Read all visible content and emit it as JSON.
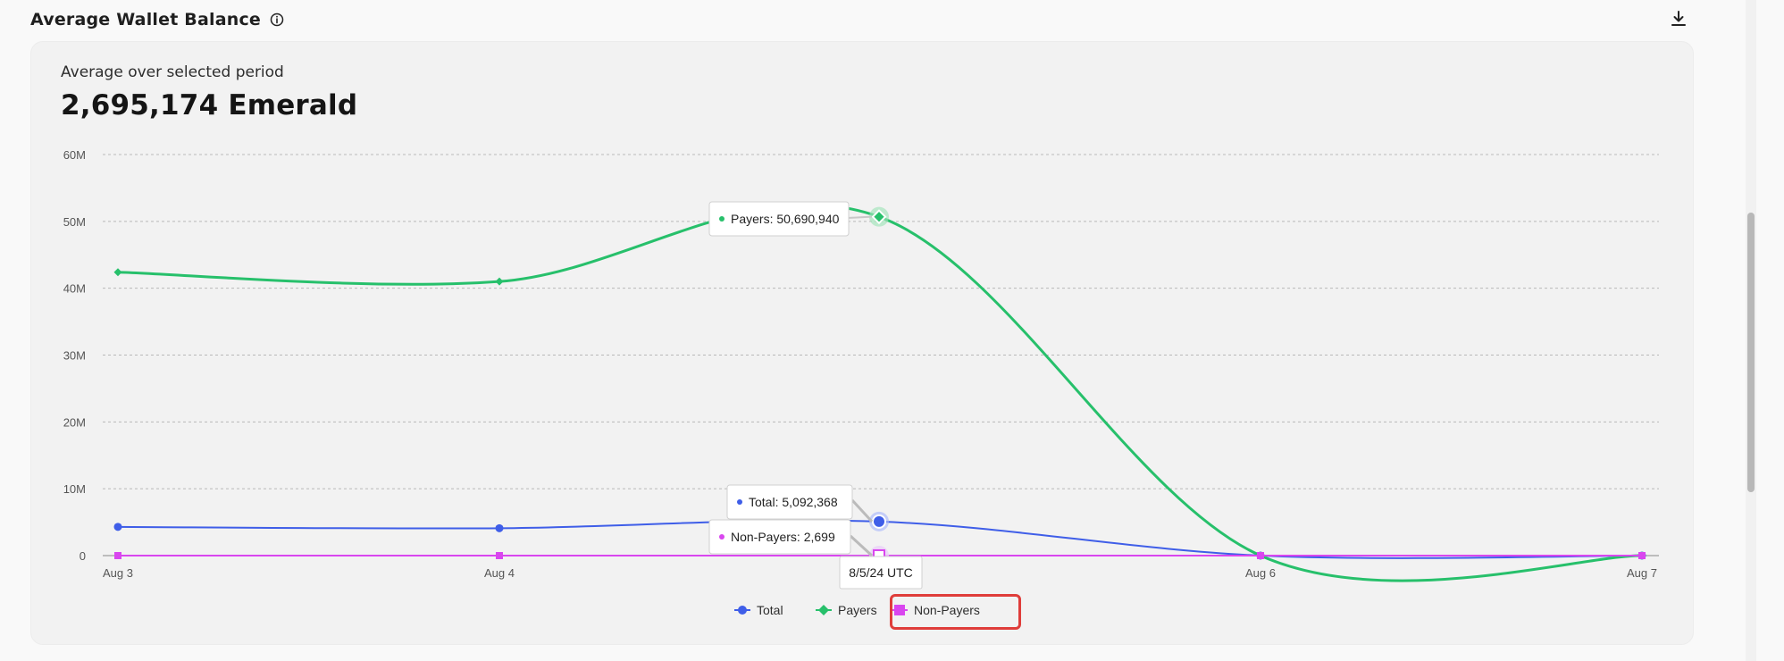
{
  "header": {
    "title": "Average Wallet Balance",
    "info_icon": "info-icon",
    "download_icon": "download-icon"
  },
  "summary": {
    "label": "Average over selected period",
    "value": "2,695,174 Emerald"
  },
  "chart_data": {
    "type": "line",
    "title": "",
    "xlabel": "",
    "ylabel": "",
    "x": [
      "Aug 3",
      "Aug 4",
      "Aug 5",
      "Aug 6",
      "Aug 7"
    ],
    "x_tick_labels": [
      "Aug 3",
      "Aug 4",
      "Aug 6",
      "Aug 7"
    ],
    "y_tick_labels": [
      "0",
      "10M",
      "20M",
      "30M",
      "40M",
      "50M",
      "60M"
    ],
    "ylim": [
      0,
      60000000
    ],
    "grid": true,
    "legend_position": "bottom-center",
    "series": [
      {
        "name": "Total",
        "color": "#3f5ee8",
        "marker": "circle",
        "values": [
          4300000,
          4100000,
          5092368,
          0,
          0
        ]
      },
      {
        "name": "Payers",
        "color": "#27c06b",
        "marker": "diamond",
        "values": [
          42400000,
          41000000,
          50690940,
          0,
          0
        ]
      },
      {
        "name": "Non-Payers",
        "color": "#d946ef",
        "marker": "square",
        "values": [
          0,
          0,
          2699,
          0,
          0
        ]
      }
    ],
    "tooltip": {
      "date": "8/5/24 UTC",
      "entries": [
        {
          "series": "Payers",
          "text": "Payers: 50,690,940"
        },
        {
          "series": "Total",
          "text": "Total: 5,092,368"
        },
        {
          "series": "Non-Payers",
          "text": "Non-Payers: 2,699"
        }
      ]
    }
  },
  "colors": {
    "grid": "#b9b9b9",
    "axis": "#bdbdbd",
    "tooltip_border": "#d0d0d0",
    "highlight_box": "#df3d3a"
  }
}
